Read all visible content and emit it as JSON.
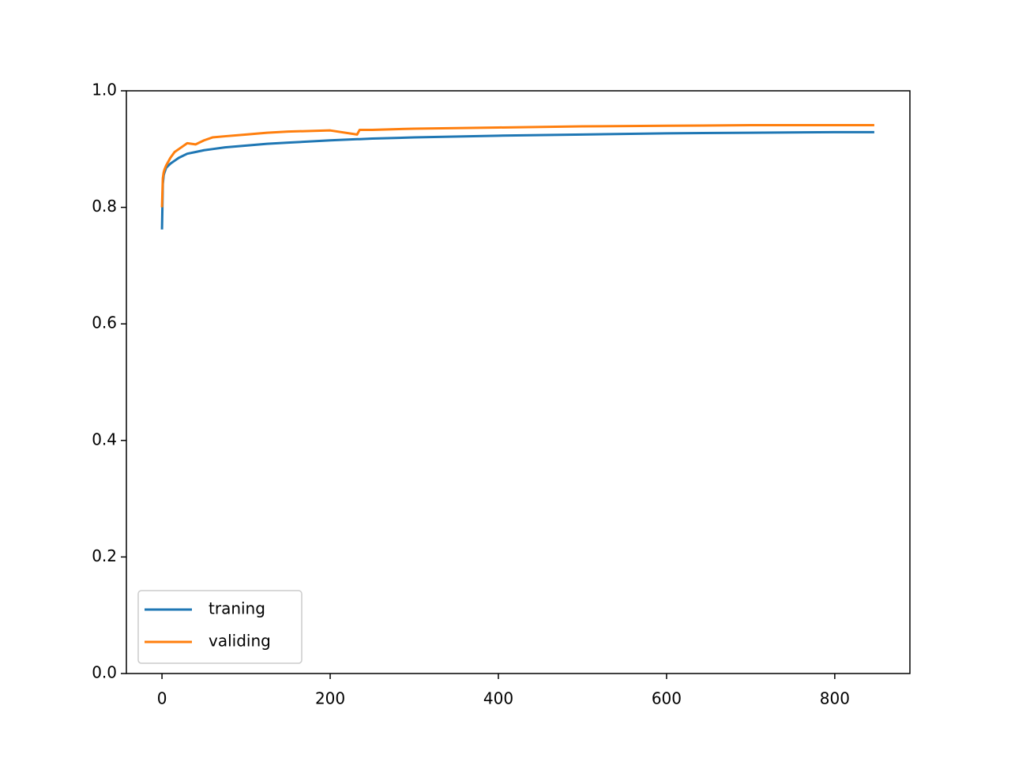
{
  "chart_data": {
    "type": "line",
    "x": [
      0,
      1,
      2,
      3,
      5,
      10,
      15,
      20,
      30,
      40,
      50,
      60,
      75,
      100,
      125,
      150,
      200,
      232,
      235,
      250,
      300,
      400,
      500,
      600,
      700,
      800,
      847
    ],
    "series": [
      {
        "name": "traning",
        "color": "#1f77b4",
        "values": [
          0.762,
          0.84,
          0.855,
          0.86,
          0.868,
          0.875,
          0.88,
          0.885,
          0.892,
          0.895,
          0.898,
          0.9,
          0.903,
          0.906,
          0.909,
          0.911,
          0.915,
          0.917,
          0.917,
          0.918,
          0.92,
          0.923,
          0.925,
          0.927,
          0.928,
          0.929,
          0.929
        ]
      },
      {
        "name": "validing",
        "color": "#ff7f0e",
        "values": [
          0.8,
          0.85,
          0.86,
          0.865,
          0.872,
          0.885,
          0.895,
          0.9,
          0.91,
          0.908,
          0.915,
          0.92,
          0.922,
          0.925,
          0.928,
          0.93,
          0.932,
          0.925,
          0.933,
          0.933,
          0.935,
          0.937,
          0.939,
          0.94,
          0.941,
          0.941,
          0.941
        ]
      }
    ],
    "xlim": [
      -42.35,
      889.35
    ],
    "xticks": [
      0,
      200,
      400,
      600,
      800
    ],
    "ylim": [
      0,
      1
    ],
    "yticks": [
      {
        "value": 0,
        "label": "0.0"
      },
      0.2,
      0.4,
      0.6,
      0.8,
      {
        "value": 1,
        "label": "1.0"
      }
    ],
    "legend": "lower left"
  }
}
